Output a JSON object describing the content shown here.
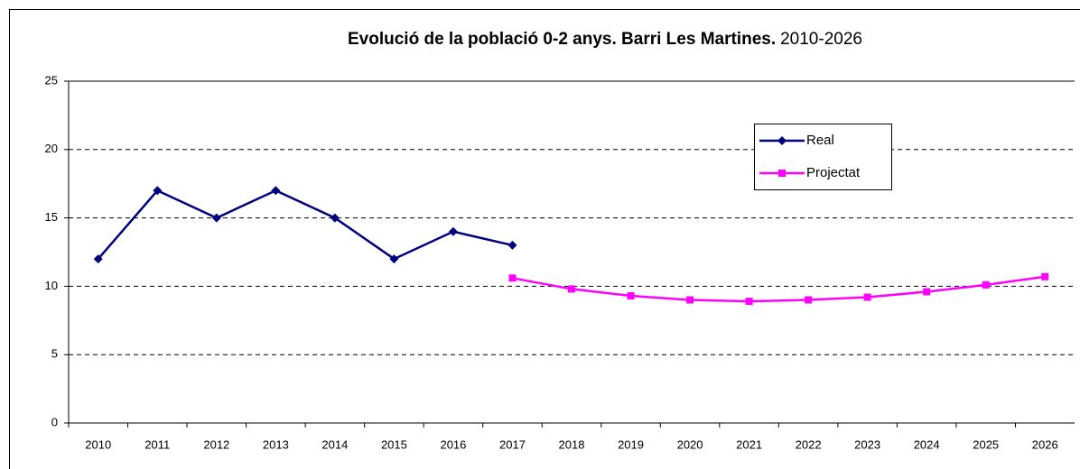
{
  "chart_data": {
    "type": "line",
    "title": "Evolució de la població 0-2 anys. Barri Les Martines.",
    "subtitle": "2010-2026",
    "categories": [
      "2010",
      "2011",
      "2012",
      "2013",
      "2014",
      "2015",
      "2016",
      "2017",
      "2018",
      "2019",
      "2020",
      "2021",
      "2022",
      "2023",
      "2024",
      "2025",
      "2026"
    ],
    "series": [
      {
        "name": "Real",
        "color": "#000080",
        "marker": "diamond",
        "values": [
          12,
          17,
          15,
          17,
          15,
          12,
          14,
          13,
          null,
          null,
          null,
          null,
          null,
          null,
          null,
          null,
          null
        ]
      },
      {
        "name": "Projectat",
        "color": "#ff00ff",
        "marker": "square",
        "values": [
          null,
          null,
          null,
          null,
          null,
          null,
          null,
          10.6,
          9.8,
          9.3,
          9.0,
          8.9,
          9.0,
          9.2,
          9.6,
          10.1,
          10.7
        ]
      }
    ],
    "ylim": [
      0,
      25
    ],
    "yticks": [
      0,
      5,
      10,
      15,
      20,
      25
    ],
    "grid": true,
    "legend": "upper right"
  }
}
